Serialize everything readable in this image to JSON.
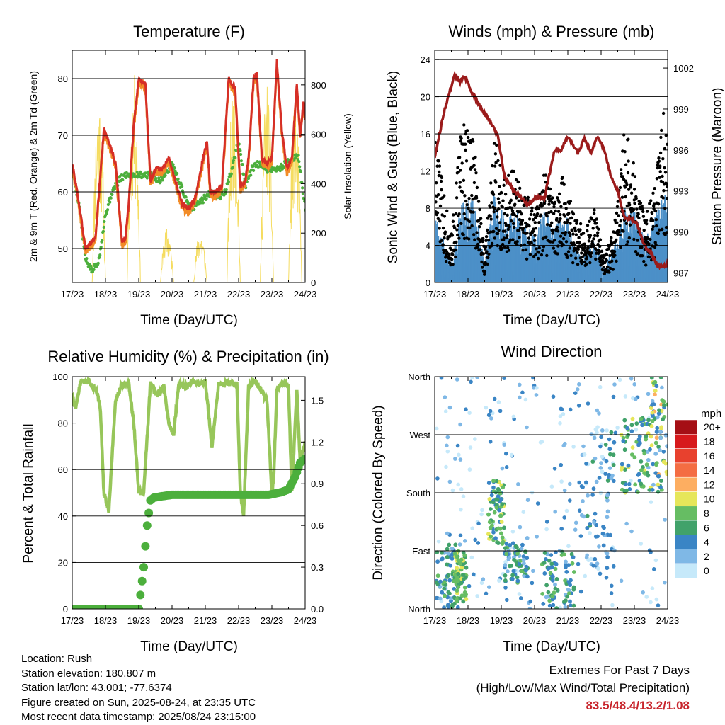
{
  "panels": {
    "temperature": {
      "title": "Temperature (F)",
      "xlabel": "Time (Day/UTC)",
      "ylabel_left": "2m & 9m T (Red, Orange) & 2m Td (Green)",
      "ylabel_right": "Solar Insolation (Yellow)"
    },
    "winds": {
      "title": "Winds (mph) & Pressure (mb)",
      "xlabel": "Time (Day/UTC)",
      "ylabel_left": "Sonic Wind & Gust (Blue, Black)",
      "ylabel_right": "Station Pressure (Maroon)"
    },
    "humidity": {
      "title": "Relative Humidity (%) & Precipitation (in)",
      "xlabel": "Time (Day/UTC)",
      "ylabel_left": "Percent & Total Rainfall"
    },
    "direction": {
      "title": "Wind Direction",
      "xlabel": "Time (Day/UTC)",
      "ylabel_left": "Direction (Colored By Speed)",
      "legend_title": "mph"
    }
  },
  "info": {
    "location": "Location: Rush",
    "elevation": "Station elevation: 180.807 m",
    "latlon": "Station lat/lon: 43.001; -77.6374",
    "created": "Figure created on Sun, 2025-08-24, at 23:35 UTC",
    "timestamp": "Most recent data timestamp: 2025/08/24 23:15:00"
  },
  "extremes": {
    "title": "Extremes For Past 7 Days",
    "subtitle": "(High/Low/Max Wind/Total Precipitation)",
    "values": "83.5/48.4/13.2/1.08"
  },
  "chart_data": [
    {
      "type": "line",
      "title": "Temperature (F)",
      "xlabel": "Time (Day/UTC)",
      "ylabel": "2m & 9m T (Red, Orange) & 2m Td (Green)",
      "y2label": "Solar Insolation (Yellow)",
      "x_ticks": [
        "17/23",
        "18/23",
        "19/23",
        "20/23",
        "21/23",
        "22/23",
        "23/23",
        "24/23"
      ],
      "ylim": [
        44,
        85
      ],
      "y_ticks": [
        50,
        60,
        70,
        80
      ],
      "y2lim": [
        0,
        940
      ],
      "y2_ticks": [
        0,
        200,
        400,
        600,
        800
      ],
      "colors": {
        "t2m": "#d62f27",
        "t9m": "#f28c28",
        "td2m": "#4caf3c",
        "solar": "#f5dc60"
      },
      "series": [
        {
          "name": "2m T",
          "x": [
            0,
            0.15,
            0.4,
            0.7,
            0.95,
            1.15,
            1.3,
            1.5,
            1.6,
            1.7,
            1.85,
            2.0,
            2.2,
            2.35,
            2.5,
            2.7,
            2.9,
            3.1,
            3.3,
            3.5,
            3.7,
            3.9,
            4.05,
            4.15,
            4.3,
            4.5,
            4.7,
            4.9,
            5.05,
            5.2,
            5.3,
            5.45,
            5.55,
            5.7,
            5.85,
            6.0,
            6.15,
            6.3,
            6.45,
            6.6,
            6.75,
            6.85,
            6.95,
            7.0
          ],
          "values": [
            65,
            60,
            50,
            52,
            71,
            68,
            65,
            51,
            52,
            58,
            72,
            80,
            79,
            62,
            64,
            64,
            66,
            62,
            58,
            57,
            59,
            65,
            69,
            60,
            60,
            61,
            80,
            78,
            61,
            62,
            66,
            80,
            81,
            66,
            65,
            66,
            83,
            71,
            64,
            66,
            79,
            70,
            76,
            73
          ]
        },
        {
          "name": "2m Td",
          "x": [
            0,
            0.2,
            0.4,
            0.6,
            0.8,
            1.0,
            1.2,
            1.4,
            1.6,
            1.8,
            2.0,
            2.2,
            2.4,
            2.6,
            2.8,
            3.0,
            3.2,
            3.4,
            3.6,
            3.8,
            4.0,
            4.2,
            4.4,
            4.6,
            4.8,
            5.0,
            5.2,
            5.4,
            5.6,
            5.8,
            6.0,
            6.2,
            6.4,
            6.6,
            6.8,
            7.0
          ],
          "values": [
            64,
            58,
            48,
            46,
            48,
            56,
            60,
            62,
            63,
            63,
            63,
            63,
            63,
            62,
            63,
            65,
            62,
            59,
            57,
            58,
            59,
            60,
            59,
            60,
            64,
            69,
            61,
            64,
            65,
            64,
            64,
            64,
            65,
            66,
            66,
            57
          ]
        },
        {
          "name": "Solar Insolation",
          "peaks": [
            0.8,
            1.85,
            2.85,
            3.85,
            4.85,
            5.85,
            6.7
          ],
          "peak_values": [
            790,
            850,
            230,
            220,
            820,
            820,
            740
          ]
        }
      ]
    },
    {
      "type": "line",
      "title": "Winds (mph) & Pressure (mb)",
      "xlabel": "Time (Day/UTC)",
      "ylabel": "Sonic Wind & Gust (Blue, Black)",
      "y2label": "Station Pressure (Maroon)",
      "x_ticks": [
        "17/23",
        "18/23",
        "19/23",
        "20/23",
        "21/23",
        "22/23",
        "23/23",
        "24/23"
      ],
      "ylim": [
        0,
        25
      ],
      "y_ticks": [
        0,
        4,
        8,
        12,
        16,
        20,
        24
      ],
      "y2lim": [
        986.3,
        1003.3
      ],
      "y2_ticks": [
        987,
        990,
        993,
        996,
        999,
        1002
      ],
      "colors": {
        "wind": "#4c90c8",
        "gust": "#000000",
        "pressure": "#9b1b1b"
      },
      "series": [
        {
          "name": "Station Pressure",
          "x": [
            0,
            0.3,
            0.6,
            0.75,
            0.9,
            1.1,
            1.4,
            1.7,
            1.9,
            2.1,
            2.4,
            2.8,
            3.0,
            3.3,
            3.6,
            3.8,
            4.0,
            4.3,
            4.5,
            4.7,
            4.9,
            5.1,
            5.3,
            5.5,
            5.7,
            5.9,
            6.1,
            6.3,
            6.5,
            6.7,
            6.85,
            7.0
          ],
          "values": [
            995.5,
            999,
            1001.5,
            1001,
            1001.4,
            1000.3,
            999,
            998,
            997,
            994,
            993,
            992,
            992.5,
            992.5,
            996,
            996,
            997,
            995.8,
            996.8,
            995.8,
            997,
            996,
            994,
            993,
            991,
            991,
            990.5,
            989,
            988.5,
            987.5,
            987.5,
            987.6
          ]
        },
        {
          "name": "Sonic Wind",
          "envelope_x": [
            0,
            0.5,
            0.8,
            1.2,
            1.5,
            1.8,
            2.1,
            2.4,
            2.7,
            3.0,
            3.3,
            3.6,
            3.9,
            4.2,
            4.5,
            4.8,
            5.1,
            5.4,
            5.7,
            6.0,
            6.3,
            6.6,
            6.9,
            7.0
          ],
          "envelope_max": [
            8,
            2,
            9,
            9,
            2,
            10,
            7,
            8,
            7,
            5,
            8,
            6,
            8,
            4,
            3,
            5,
            2,
            4,
            8,
            8,
            5,
            7,
            10,
            8
          ]
        },
        {
          "name": "Gust",
          "envelope_x": [
            0,
            0.5,
            0.8,
            1.2,
            1.5,
            1.8,
            2.1,
            2.4,
            2.7,
            3.0,
            3.3,
            3.6,
            3.9,
            4.2,
            4.5,
            4.8,
            5.1,
            5.4,
            5.7,
            6.0,
            6.3,
            6.6,
            6.9,
            7.0
          ],
          "envelope_max": [
            17,
            5,
            18,
            16,
            3,
            16,
            12,
            12,
            10,
            8,
            12,
            9,
            12,
            7,
            6,
            8,
            3,
            6,
            17,
            13,
            7,
            10,
            20,
            15
          ]
        }
      ]
    },
    {
      "type": "line",
      "title": "Relative Humidity (%) & Precipitation (in)",
      "xlabel": "Time (Day/UTC)",
      "ylabel": "Percent & Total Rainfall",
      "x_ticks": [
        "17/23",
        "18/23",
        "19/23",
        "20/23",
        "21/23",
        "22/23",
        "23/23",
        "24/23"
      ],
      "ylim": [
        0,
        100
      ],
      "y_ticks": [
        0,
        20,
        40,
        60,
        80,
        100
      ],
      "y2lim": [
        0,
        1.67
      ],
      "y2_ticks": [
        0.0,
        0.3,
        0.6,
        0.9,
        1.2,
        1.5
      ],
      "colors": {
        "rh": "#97c65a",
        "precip": "#4caf3c"
      },
      "series": [
        {
          "name": "Relative Humidity",
          "x": [
            0,
            0.1,
            0.25,
            0.5,
            0.75,
            0.85,
            0.95,
            1.1,
            1.3,
            1.5,
            1.7,
            1.85,
            2.0,
            2.15,
            2.35,
            2.55,
            2.75,
            2.9,
            3.05,
            3.2,
            3.45,
            3.6,
            3.8,
            4.0,
            4.2,
            4.4,
            4.6,
            4.8,
            4.95,
            5.05,
            5.15,
            5.3,
            5.5,
            5.6,
            5.85,
            6.0,
            6.05,
            6.15,
            6.35,
            6.5,
            6.6,
            6.75,
            6.85,
            7.0
          ],
          "values": [
            92,
            86,
            98,
            98,
            93,
            85,
            50,
            42,
            90,
            97,
            97,
            80,
            50,
            50,
            97,
            92,
            96,
            80,
            75,
            97,
            96,
            98,
            97,
            98,
            70,
            97,
            97,
            97,
            97,
            50,
            40,
            96,
            98,
            96,
            90,
            50,
            55,
            95,
            97,
            96,
            50,
            95,
            63,
            72
          ]
        },
        {
          "name": "Total Precipitation",
          "x": [
            0,
            1.0,
            2.0,
            2.15,
            2.25,
            2.35,
            2.45,
            2.7,
            3.0,
            4.0,
            4.9,
            5.9,
            6.1,
            6.3,
            6.5,
            6.7,
            6.85,
            7.0
          ],
          "values": [
            0.0,
            0.0,
            0.0,
            0.3,
            0.6,
            0.78,
            0.8,
            0.81,
            0.82,
            0.82,
            0.82,
            0.82,
            0.83,
            0.84,
            0.86,
            0.95,
            1.05,
            1.08
          ]
        }
      ]
    },
    {
      "type": "scatter",
      "title": "Wind Direction",
      "xlabel": "Time (Day/UTC)",
      "ylabel": "Direction (Colored By Speed)",
      "x_ticks": [
        "17/23",
        "18/23",
        "19/23",
        "20/23",
        "21/23",
        "22/23",
        "23/23",
        "24/23"
      ],
      "y_ticks": [
        "North",
        "East",
        "South",
        "West",
        "North"
      ],
      "legend": {
        "title": "mph",
        "placement": "right",
        "labels": [
          "20+",
          "18",
          "16",
          "14",
          "12",
          "10",
          "8",
          "6",
          "4",
          "2",
          "0"
        ],
        "colors": [
          "#a50f15",
          "#d7191c",
          "#e8412e",
          "#f46d43",
          "#fdae61",
          "#e6e65a",
          "#66bd63",
          "#41a26a",
          "#3a85c5",
          "#7fb8e6",
          "#c6e9fa"
        ]
      },
      "clusters": [
        {
          "x": [
            0.05,
            0.7
          ],
          "dir": [
            0,
            100
          ],
          "speed": "2-8"
        },
        {
          "x": [
            0.6,
            0.95
          ],
          "dir": [
            10,
            90
          ],
          "speed": "6-10"
        },
        {
          "x": [
            1.6,
            2.1
          ],
          "dir": [
            100,
            200
          ],
          "speed": "4-10"
        },
        {
          "x": [
            2.1,
            2.8
          ],
          "dir": [
            40,
            110
          ],
          "speed": "2-8"
        },
        {
          "x": [
            3.2,
            4.2
          ],
          "dir": [
            0,
            90
          ],
          "speed": "2-8"
        },
        {
          "x": [
            4.4,
            5.4
          ],
          "dir": [
            60,
            280
          ],
          "speed": "0-6"
        },
        {
          "x": [
            5.6,
            6.5
          ],
          "dir": [
            180,
            300
          ],
          "speed": "4-10"
        },
        {
          "x": [
            6.5,
            7.0
          ],
          "dir": [
            180,
            360
          ],
          "speed": "2-12"
        }
      ]
    }
  ]
}
